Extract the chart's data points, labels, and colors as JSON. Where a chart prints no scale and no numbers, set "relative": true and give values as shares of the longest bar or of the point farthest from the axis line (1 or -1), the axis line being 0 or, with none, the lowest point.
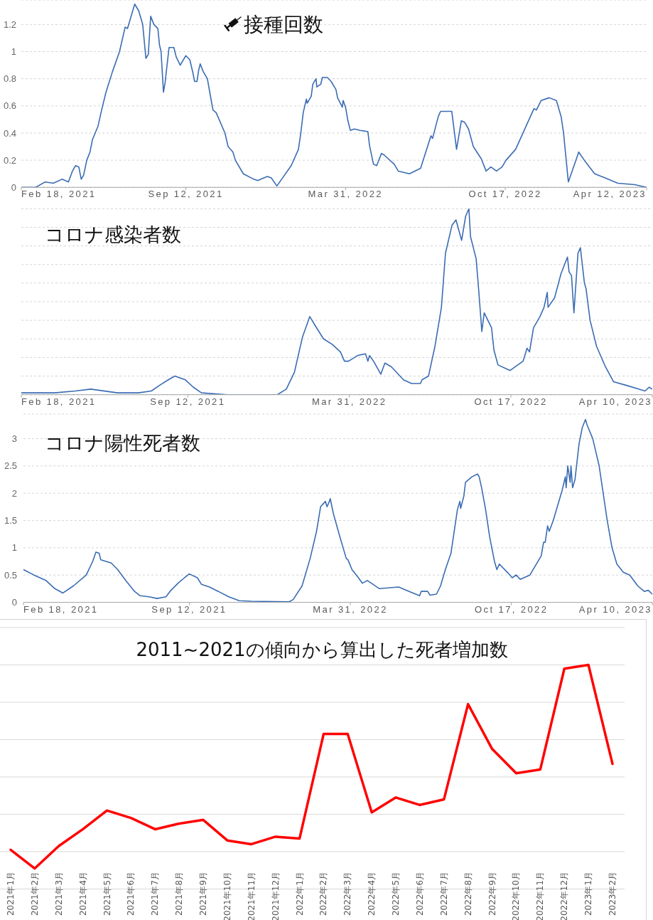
{
  "chart_data": [
    {
      "type": "line",
      "title": "接種回数",
      "color": "#3a6cb4",
      "grid": "y",
      "xlim": [
        "2021-02-18",
        "2023-04-12"
      ],
      "xticks": [
        {
          "value": "2021-02-18",
          "label": "Feb 18, 2021"
        },
        {
          "value": "2021-09-12",
          "label": "Sep 12, 2021"
        },
        {
          "value": "2022-03-31",
          "label": "Mar 31, 2022"
        },
        {
          "value": "2022-10-17",
          "label": "Oct 17, 2022"
        },
        {
          "value": "2023-04-12",
          "label": "Apr 12, 2023"
        }
      ],
      "ylim": [
        0,
        1.38
      ],
      "yticks": [
        0,
        0.2,
        0.4,
        0.6,
        0.8,
        1,
        1.2
      ],
      "x": [
        "2021-02-18",
        "2021-03-08",
        "2021-03-20",
        "2021-03-30",
        "2021-04-10",
        "2021-04-18",
        "2021-04-23",
        "2021-04-27",
        "2021-05-01",
        "2021-05-04",
        "2021-05-07",
        "2021-05-11",
        "2021-05-15",
        "2021-05-18",
        "2021-05-25",
        "2021-05-30",
        "2021-06-04",
        "2021-06-12",
        "2021-06-21",
        "2021-06-28",
        "2021-07-01",
        "2021-07-05",
        "2021-07-10",
        "2021-07-15",
        "2021-07-20",
        "2021-07-24",
        "2021-07-27",
        "2021-07-30",
        "2021-08-03",
        "2021-08-08",
        "2021-08-10",
        "2021-08-12",
        "2021-08-15",
        "2021-08-17",
        "2021-08-22",
        "2021-08-28",
        "2021-08-31",
        "2021-09-05",
        "2021-09-12",
        "2021-09-17",
        "2021-09-21",
        "2021-09-23",
        "2021-09-26",
        "2021-09-28",
        "2021-09-30",
        "2021-10-04",
        "2021-10-09",
        "2021-10-12",
        "2021-10-16",
        "2021-10-20",
        "2021-10-31",
        "2021-11-04",
        "2021-11-10",
        "2021-11-13",
        "2021-11-23",
        "2021-12-06",
        "2021-12-11",
        "2021-12-23",
        "2021-12-28",
        "2022-01-04",
        "2022-01-10",
        "2022-01-22",
        "2022-01-31",
        "2022-02-03",
        "2022-02-06",
        "2022-02-10",
        "2022-02-11",
        "2022-02-16",
        "2022-02-18",
        "2022-02-22",
        "2022-02-23",
        "2022-02-28",
        "2022-03-02",
        "2022-03-08",
        "2022-03-13",
        "2022-03-19",
        "2022-03-21",
        "2022-03-27",
        "2022-03-28",
        "2022-03-31",
        "2022-04-03",
        "2022-04-06",
        "2022-04-11",
        "2022-04-18",
        "2022-04-28",
        "2022-04-30",
        "2022-05-05",
        "2022-05-09",
        "2022-05-15",
        "2022-05-18",
        "2022-05-31",
        "2022-06-05",
        "2022-06-19",
        "2022-07-03",
        "2022-07-16",
        "2022-07-18",
        "2022-07-25",
        "2022-07-28",
        "2022-08-11",
        "2022-08-17",
        "2022-08-23",
        "2022-08-27",
        "2022-09-01",
        "2022-09-07",
        "2022-09-17",
        "2022-09-23",
        "2022-09-29",
        "2022-10-06",
        "2022-10-13",
        "2022-10-18",
        "2022-10-30",
        "2022-11-12",
        "2022-11-22",
        "2022-11-25",
        "2022-12-01",
        "2022-12-11",
        "2022-12-20",
        "2022-12-26",
        "2022-12-29",
        "2023-01-04",
        "2023-01-10",
        "2023-01-17",
        "2023-01-24",
        "2023-02-06",
        "2023-02-19",
        "2023-03-07",
        "2023-03-28",
        "2023-04-12"
      ],
      "values": [
        0,
        0,
        0.04,
        0.03,
        0.06,
        0.04,
        0.12,
        0.16,
        0.15,
        0.06,
        0.09,
        0.2,
        0.26,
        0.35,
        0.45,
        0.58,
        0.7,
        0.85,
        1,
        1.18,
        1.17,
        1.25,
        1.35,
        1.3,
        1.2,
        0.95,
        0.98,
        1.26,
        1.2,
        1.17,
        1.05,
        1,
        0.7,
        0.77,
        1.03,
        1.03,
        0.96,
        0.9,
        0.97,
        0.94,
        0.84,
        0.78,
        0.78,
        0.86,
        0.91,
        0.85,
        0.8,
        0.7,
        0.57,
        0.55,
        0.4,
        0.3,
        0.26,
        0.2,
        0.1,
        0.06,
        0.05,
        0.08,
        0.07,
        0.01,
        0.06,
        0.16,
        0.28,
        0.4,
        0.55,
        0.65,
        0.62,
        0.67,
        0.76,
        0.8,
        0.74,
        0.76,
        0.81,
        0.81,
        0.78,
        0.72,
        0.66,
        0.59,
        0.64,
        0.59,
        0.49,
        0.42,
        0.43,
        0.42,
        0.41,
        0.31,
        0.17,
        0.16,
        0.25,
        0.24,
        0.17,
        0.12,
        0.1,
        0.14,
        0.38,
        0.36,
        0.52,
        0.56,
        0.56,
        0.28,
        0.49,
        0.48,
        0.43,
        0.3,
        0.21,
        0.12,
        0.15,
        0.12,
        0.15,
        0.2,
        0.28,
        0.45,
        0.58,
        0.57,
        0.64,
        0.66,
        0.64,
        0.52,
        0.4,
        0.04,
        0.14,
        0.26,
        0.2,
        0.1,
        0.07,
        0.03,
        0.02,
        0
      ]
    },
    {
      "type": "line",
      "title": "コロナ感染者数",
      "color": "#3a6cb4",
      "grid": "y",
      "relative": true,
      "xlim": [
        "2021-02-18",
        "2023-04-10"
      ],
      "xticks": [
        {
          "value": "2021-02-18",
          "label": "Feb 18, 2021"
        },
        {
          "value": "2021-09-12",
          "label": "Sep 12, 2021"
        },
        {
          "value": "2022-03-31",
          "label": "Mar 31, 2022"
        },
        {
          "value": "2022-10-17",
          "label": "Oct 17, 2022"
        },
        {
          "value": "2023-04-10",
          "label": "Apr 10, 2023"
        }
      ],
      "x": [
        "2021-02-18",
        "2021-03-31",
        "2021-04-26",
        "2021-05-15",
        "2021-06-17",
        "2021-07-13",
        "2021-07-29",
        "2021-08-08",
        "2021-08-19",
        "2021-08-27",
        "2021-09-09",
        "2021-09-19",
        "2021-09-29",
        "2021-10-31",
        "2022-01-01",
        "2022-01-12",
        "2022-01-22",
        "2022-02-01",
        "2022-02-10",
        "2022-02-17",
        "2022-02-27",
        "2022-03-10",
        "2022-03-20",
        "2022-03-25",
        "2022-03-30",
        "2022-04-10",
        "2022-04-20",
        "2022-04-23",
        "2022-04-25",
        "2022-04-30",
        "2022-05-09",
        "2022-05-14",
        "2022-05-22",
        "2022-06-06",
        "2022-06-16",
        "2022-06-27",
        "2022-06-29",
        "2022-07-07",
        "2022-07-15",
        "2022-07-23",
        "2022-07-28",
        "2022-08-05",
        "2022-08-10",
        "2022-08-17",
        "2022-08-22",
        "2022-08-26",
        "2022-08-28",
        "2022-09-04",
        "2022-09-07",
        "2022-09-11",
        "2022-09-14",
        "2022-09-23",
        "2022-09-26",
        "2022-10-01",
        "2022-10-16",
        "2022-11-01",
        "2022-11-06",
        "2022-11-09",
        "2022-11-14",
        "2022-11-22",
        "2022-11-27",
        "2022-12-01",
        "2022-12-02",
        "2022-12-10",
        "2022-12-18",
        "2022-12-26",
        "2022-12-28",
        "2022-12-31",
        "2023-01-03",
        "2023-01-08",
        "2023-01-11",
        "2023-01-16",
        "2023-01-18",
        "2023-01-23",
        "2023-01-31",
        "2023-02-11",
        "2023-02-21",
        "2023-03-09",
        "2023-03-24",
        "2023-04-01",
        "2023-04-06",
        "2023-04-10"
      ],
      "values": [
        0.01,
        0.01,
        0.02,
        0.03,
        0.01,
        0.01,
        0.02,
        0.05,
        0.08,
        0.1,
        0.08,
        0.04,
        0.01,
        0,
        0,
        0.03,
        0.12,
        0.31,
        0.42,
        0.37,
        0.3,
        0.27,
        0.23,
        0.18,
        0.18,
        0.21,
        0.22,
        0.18,
        0.21,
        0.18,
        0.11,
        0.17,
        0.15,
        0.08,
        0.06,
        0.06,
        0.08,
        0.1,
        0.26,
        0.47,
        0.76,
        0.91,
        0.94,
        0.83,
        0.96,
        1,
        0.85,
        0.73,
        0.57,
        0.34,
        0.44,
        0.36,
        0.24,
        0.16,
        0.13,
        0.18,
        0.25,
        0.23,
        0.36,
        0.42,
        0.47,
        0.55,
        0.47,
        0.52,
        0.65,
        0.74,
        0.66,
        0.64,
        0.44,
        0.76,
        0.79,
        0.6,
        0.57,
        0.4,
        0.26,
        0.15,
        0.07,
        0.05,
        0.03,
        0.02,
        0.04,
        0.03
      ]
    },
    {
      "type": "line",
      "title": "コロナ陽性死者数",
      "color": "#3a6cb4",
      "grid": "y",
      "xlim": [
        "2021-02-18",
        "2023-04-10"
      ],
      "xticks": [
        {
          "value": "2021-02-18",
          "label": "Feb 18, 2021"
        },
        {
          "value": "2021-09-12",
          "label": "Sep 12, 2021"
        },
        {
          "value": "2022-03-31",
          "label": "Mar 31, 2022"
        },
        {
          "value": "2022-10-17",
          "label": "Oct 17, 2022"
        },
        {
          "value": "2023-04-10",
          "label": "Apr 10, 2023"
        }
      ],
      "ylim": [
        0,
        3.45
      ],
      "yticks": [
        0,
        0.5,
        1,
        1.5,
        2,
        2.5,
        3
      ],
      "x": [
        "2021-02-18",
        "2021-03-03",
        "2021-03-18",
        "2021-03-29",
        "2021-04-08",
        "2021-04-21",
        "2021-05-07",
        "2021-05-15",
        "2021-05-19",
        "2021-05-23",
        "2021-05-25",
        "2021-06-07",
        "2021-06-15",
        "2021-06-25",
        "2021-07-06",
        "2021-07-13",
        "2021-07-24",
        "2021-08-03",
        "2021-08-14",
        "2021-08-19",
        "2021-08-29",
        "2021-09-06",
        "2021-09-12",
        "2021-09-22",
        "2021-09-27",
        "2021-10-07",
        "2021-10-18",
        "2021-10-31",
        "2021-11-13",
        "2021-11-28",
        "2022-01-14",
        "2022-01-19",
        "2022-01-30",
        "2022-02-09",
        "2022-02-17",
        "2022-02-22",
        "2022-02-28",
        "2022-03-02",
        "2022-03-05",
        "2022-03-06",
        "2022-03-10",
        "2022-03-18",
        "2022-03-26",
        "2022-03-28",
        "2022-04-02",
        "2022-04-10",
        "2022-04-15",
        "2022-04-21",
        "2022-04-28",
        "2022-05-06",
        "2022-05-30",
        "2022-06-12",
        "2022-06-25",
        "2022-06-27",
        "2022-07-05",
        "2022-07-08",
        "2022-07-16",
        "2022-07-21",
        "2022-07-27",
        "2022-08-03",
        "2022-08-06",
        "2022-08-11",
        "2022-08-14",
        "2022-08-15",
        "2022-08-19",
        "2022-08-21",
        "2022-08-29",
        "2022-09-05",
        "2022-09-07",
        "2022-09-10",
        "2022-09-15",
        "2022-09-20",
        "2022-09-26",
        "2022-09-29",
        "2022-10-02",
        "2022-10-12",
        "2022-10-18",
        "2022-10-23",
        "2022-10-28",
        "2022-11-09",
        "2022-11-15",
        "2022-11-23",
        "2022-11-26",
        "2022-11-28",
        "2022-12-01",
        "2022-12-03",
        "2022-12-08",
        "2022-12-14",
        "2022-12-19",
        "2022-12-23",
        "2022-12-24",
        "2022-12-26",
        "2022-12-29",
        "2022-12-30",
        "2023-01-01",
        "2023-01-04",
        "2023-01-09",
        "2023-01-13",
        "2023-01-17",
        "2023-01-19",
        "2023-01-26",
        "2023-02-03",
        "2023-02-08",
        "2023-02-13",
        "2023-02-19",
        "2023-02-25",
        "2023-03-05",
        "2023-03-13",
        "2023-03-23",
        "2023-03-31",
        "2023-04-05",
        "2023-04-10"
      ],
      "values": [
        0.6,
        0.5,
        0.4,
        0.25,
        0.17,
        0.3,
        0.5,
        0.75,
        0.92,
        0.9,
        0.78,
        0.72,
        0.6,
        0.4,
        0.2,
        0.12,
        0.1,
        0.07,
        0.1,
        0.2,
        0.35,
        0.45,
        0.52,
        0.45,
        0.33,
        0.28,
        0.2,
        0.1,
        0.03,
        0.02,
        0.01,
        0.05,
        0.3,
        0.8,
        1.3,
        1.75,
        1.85,
        1.75,
        1.85,
        1.9,
        1.62,
        1.2,
        0.8,
        0.78,
        0.6,
        0.45,
        0.35,
        0.4,
        0.33,
        0.25,
        0.28,
        0.2,
        0.12,
        0.2,
        0.2,
        0.13,
        0.15,
        0.3,
        0.6,
        0.9,
        1.2,
        1.7,
        1.85,
        1.72,
        1.95,
        2.2,
        2.3,
        2.35,
        2.3,
        2.1,
        1.7,
        1.2,
        0.75,
        0.6,
        0.7,
        0.55,
        0.45,
        0.5,
        0.42,
        0.5,
        0.65,
        0.85,
        1.1,
        1.1,
        1.4,
        1.3,
        1.5,
        1.8,
        2.05,
        2.3,
        2.1,
        2.5,
        2.2,
        2.5,
        2.1,
        2.25,
        2.9,
        3.2,
        3.35,
        3.25,
        3,
        2.5,
        2,
        1.5,
        1,
        0.7,
        0.55,
        0.5,
        0.3,
        0.2,
        0.22,
        0.15
      ]
    },
    {
      "type": "line",
      "title": "2011~2021の傾向から算出した死者増加数",
      "color": "#ff0000",
      "grid": "y",
      "relative": true,
      "categories": [
        "2021年1月",
        "2021年2月",
        "2021年3月",
        "2021年4月",
        "2021年5月",
        "2021年6月",
        "2021年7月",
        "2021年8月",
        "2021年9月",
        "2021年10月",
        "2021年11月",
        "2021年12月",
        "2022年1月",
        "2022年2月",
        "2022年3月",
        "2022年4月",
        "2022年5月",
        "2022年6月",
        "2022年7月",
        "2022年8月",
        "2022年9月",
        "2022年10月",
        "2022年11月",
        "2022年12月",
        "2023年1月",
        "2023年2月"
      ],
      "values": [
        0.01,
        -0.09,
        0.03,
        0.12,
        0.22,
        0.18,
        0.12,
        0.15,
        0.17,
        0.06,
        0.04,
        0.08,
        0.07,
        0.63,
        0.63,
        0.21,
        0.29,
        0.25,
        0.28,
        0.79,
        0.55,
        0.42,
        0.44,
        0.98,
        1,
        0.47
      ]
    }
  ]
}
